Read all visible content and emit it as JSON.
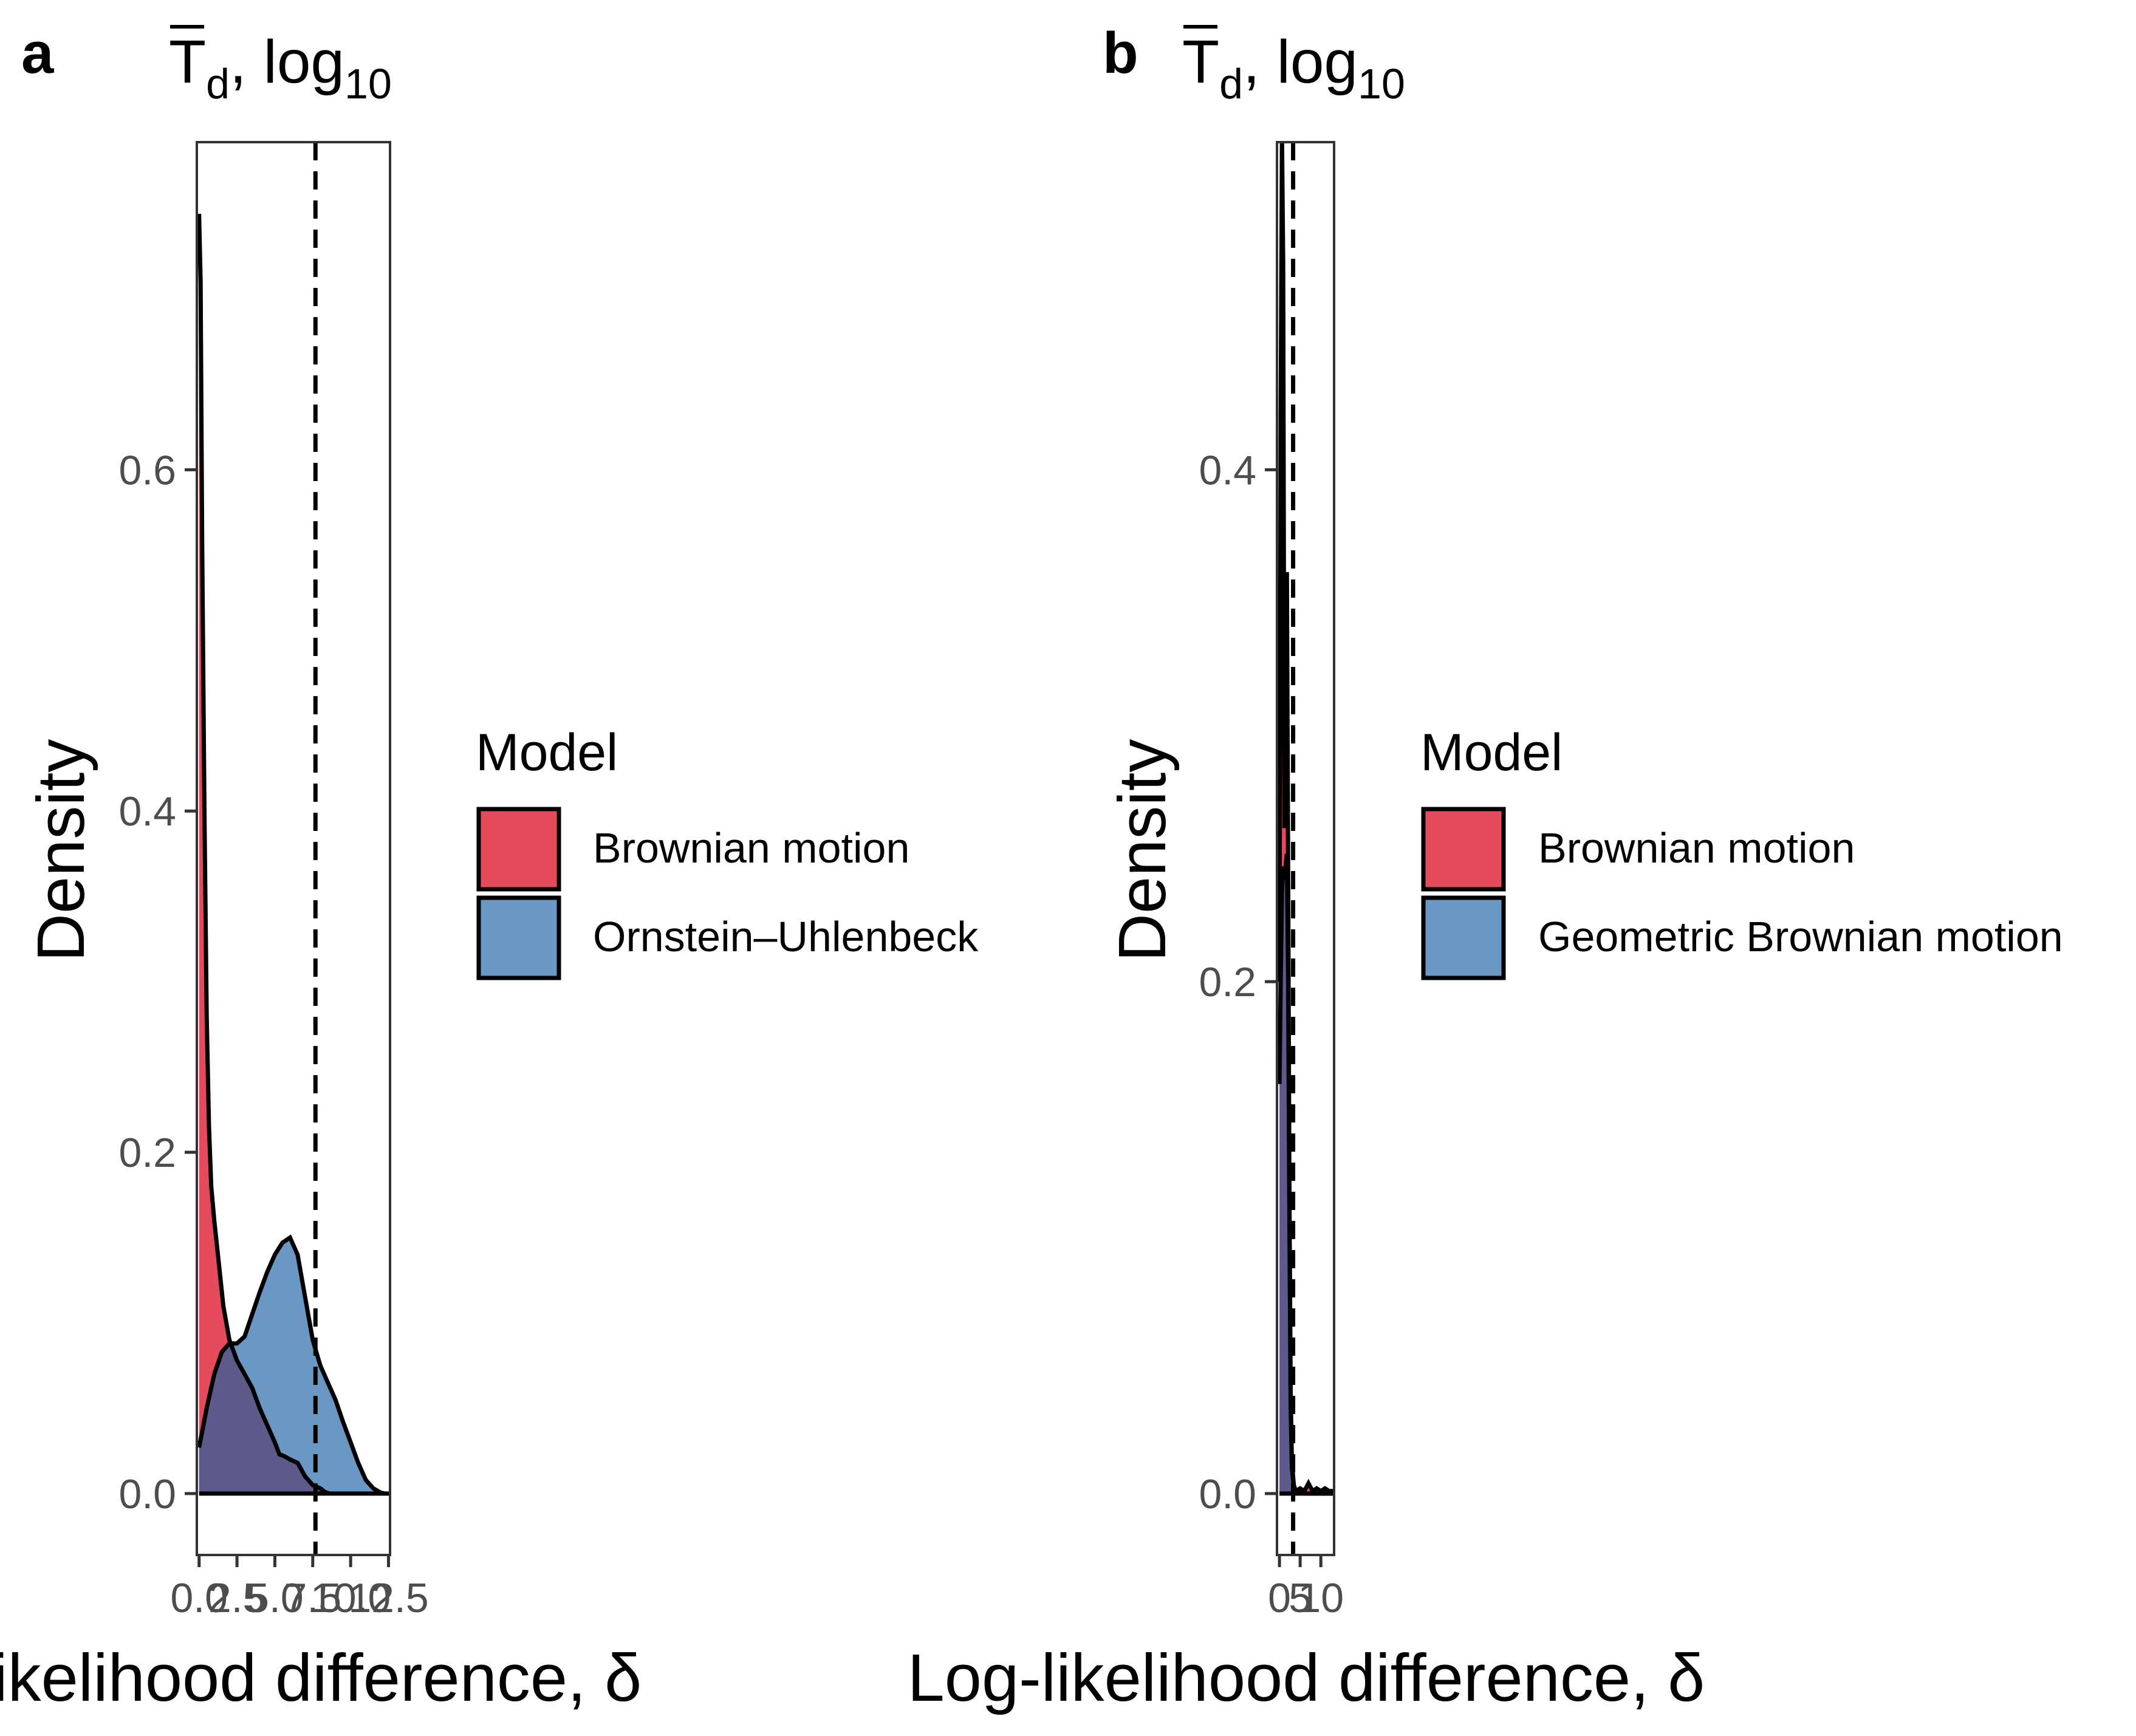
{
  "panels": [
    {
      "label": "a",
      "title_main": "T",
      "title_sub": "d",
      "title_rest": ", log",
      "title_rest_sub": "10",
      "legend_title": "Model",
      "legend_entries": [
        {
          "name": "Brownian motion",
          "color": "#e64b5d"
        },
        {
          "name": "Ornstein–Uhlenbeck",
          "color": "#6b97c4"
        }
      ]
    },
    {
      "label": "b",
      "title_main": "T",
      "title_sub": "d",
      "title_rest": ", log",
      "title_rest_sub": "10",
      "legend_title": "Model",
      "legend_entries": [
        {
          "name": "Brownian motion",
          "color": "#e64b5d"
        },
        {
          "name": "Geometric Brownian motion",
          "color": "#6b97c4"
        }
      ]
    }
  ],
  "colors": {
    "red": "#e64b5d",
    "blue": "#6b97c4",
    "overlap": "#5f5a8c"
  },
  "chart_data": [
    {
      "type": "area",
      "panel": "a",
      "xlabel": "Log-likelihood difference, δ",
      "ylabel": "Density",
      "xlim": [
        -0.15,
        12.6
      ],
      "ylim": [
        -0.036,
        0.792
      ],
      "xticks": [
        0,
        2.5,
        5,
        7.5,
        10,
        12.5
      ],
      "xtick_labels": [
        "0.0",
        "2.5",
        "5.0",
        "7.5",
        "10.0",
        "12.5"
      ],
      "yticks": [
        0,
        0.2,
        0.4,
        0.6
      ],
      "ytick_labels": [
        "0.0",
        "0.2",
        "0.4",
        "0.6"
      ],
      "vline": 7.68,
      "series": [
        {
          "name": "Brownian motion",
          "x": [
            0,
            0.1,
            0.2,
            0.35,
            0.5,
            0.65,
            0.8,
            1.0,
            1.3,
            1.6,
            2.0,
            2.5,
            3.0,
            3.5,
            4.0,
            4.5,
            5.0,
            5.3,
            5.6,
            6.0,
            6.5,
            7.0,
            7.5,
            8.0,
            8.3,
            8.6
          ],
          "y": [
            0.75,
            0.71,
            0.56,
            0.4,
            0.28,
            0.215,
            0.18,
            0.16,
            0.135,
            0.11,
            0.09,
            0.078,
            0.07,
            0.062,
            0.05,
            0.04,
            0.03,
            0.023,
            0.022,
            0.02,
            0.018,
            0.01,
            0.005,
            0.003,
            0.001,
            0
          ]
        },
        {
          "name": "Ornstein–Uhlenbeck",
          "x": [
            0,
            0.5,
            1.0,
            1.5,
            2.0,
            2.5,
            3.0,
            3.5,
            4.0,
            4.5,
            5.0,
            5.5,
            6.0,
            6.5,
            7.0,
            7.5,
            8.0,
            8.5,
            9.0,
            9.5,
            10.0,
            10.5,
            11.0,
            11.5,
            12.0,
            12.3
          ],
          "y": [
            0.027,
            0.05,
            0.07,
            0.083,
            0.088,
            0.088,
            0.092,
            0.105,
            0.118,
            0.13,
            0.14,
            0.147,
            0.15,
            0.14,
            0.115,
            0.09,
            0.075,
            0.065,
            0.055,
            0.042,
            0.03,
            0.018,
            0.008,
            0.003,
            0.0005,
            0
          ]
        }
      ]
    },
    {
      "type": "area",
      "panel": "b",
      "xlabel": "Log-likelihood difference, δ",
      "ylabel": "Density",
      "xlim": [
        -0.6,
        13.2
      ],
      "ylim": [
        -0.024,
        0.528
      ],
      "xticks": [
        0,
        5,
        10
      ],
      "xtick_labels": [
        "0",
        "5",
        "10"
      ],
      "yticks": [
        0,
        0.2,
        0.4
      ],
      "yticks_labels_note": "",
      "ytick_labels": [
        "0.0",
        "0.2",
        "0.4"
      ],
      "vline": 3.3,
      "series": [
        {
          "name": "Brownian motion",
          "x": [
            0,
            0.3,
            0.6,
            0.9,
            1.2,
            1.5,
            1.8,
            2.1,
            2.4,
            2.7,
            3.0,
            3.5,
            4.0,
            5.0,
            6.0,
            7.0,
            8.0,
            9.0,
            10.0,
            11.0,
            12.0,
            13.0
          ],
          "y": [
            0.2,
            0.42,
            0.531,
            0.48,
            0.26,
            0.34,
            0.36,
            0.24,
            0.12,
            0.04,
            0.012,
            0.003,
            0.001,
            0.002,
            0.001,
            0.004,
            0.001,
            0.002,
            0.001,
            0.002,
            0.001,
            0.001
          ]
        },
        {
          "name": "Geometric Brownian motion",
          "x": [
            0,
            0.3,
            0.6,
            0.9,
            1.2,
            1.5,
            1.8,
            2.1,
            2.4,
            2.7,
            3.0,
            3.5,
            4.0,
            5.0,
            6.0,
            7.0,
            8.0,
            9.0,
            10.0,
            11.0,
            12.0,
            13.0
          ],
          "y": [
            0.16,
            0.2,
            0.235,
            0.245,
            0.24,
            0.245,
            0.25,
            0.2,
            0.11,
            0.035,
            0.01,
            0.002,
            0.001,
            0.001,
            0,
            0,
            0,
            0,
            0,
            0,
            0,
            0
          ]
        }
      ]
    }
  ]
}
